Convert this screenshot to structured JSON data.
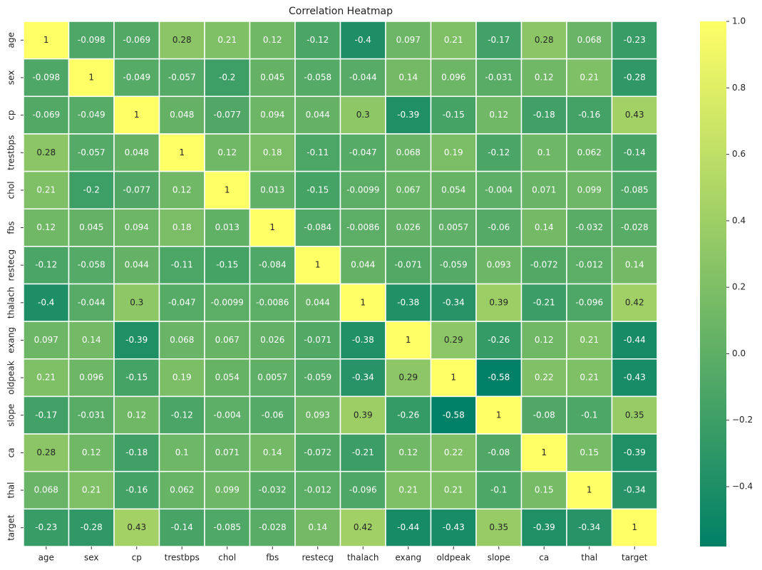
{
  "chart_data": {
    "type": "heatmap",
    "title": "Correlation Heatmap",
    "x_categories": [
      "age",
      "sex",
      "cp",
      "trestbps",
      "chol",
      "fbs",
      "restecg",
      "thalach",
      "exang",
      "oldpeak",
      "slope",
      "ca",
      "thal",
      "target"
    ],
    "y_categories": [
      "age",
      "sex",
      "cp",
      "trestbps",
      "chol",
      "fbs",
      "restecg",
      "thalach",
      "exang",
      "oldpeak",
      "slope",
      "ca",
      "thal",
      "target"
    ],
    "values": [
      [
        1,
        -0.098,
        -0.069,
        0.28,
        0.21,
        0.12,
        -0.12,
        -0.4,
        0.097,
        0.21,
        -0.17,
        0.28,
        0.068,
        -0.23
      ],
      [
        -0.098,
        1,
        -0.049,
        -0.057,
        -0.2,
        0.045,
        -0.058,
        -0.044,
        0.14,
        0.096,
        -0.031,
        0.12,
        0.21,
        -0.28
      ],
      [
        -0.069,
        -0.049,
        1,
        0.048,
        -0.077,
        0.094,
        0.044,
        0.3,
        -0.39,
        -0.15,
        0.12,
        -0.18,
        -0.16,
        0.43
      ],
      [
        0.28,
        -0.057,
        0.048,
        1,
        0.12,
        0.18,
        -0.11,
        -0.047,
        0.068,
        0.19,
        -0.12,
        0.1,
        0.062,
        -0.14
      ],
      [
        0.21,
        -0.2,
        -0.077,
        0.12,
        1,
        0.013,
        -0.15,
        -0.0099,
        0.067,
        0.054,
        -0.004,
        0.071,
        0.099,
        -0.085
      ],
      [
        0.12,
        0.045,
        0.094,
        0.18,
        0.013,
        1,
        -0.084,
        -0.0086,
        0.026,
        0.0057,
        -0.06,
        0.14,
        -0.032,
        -0.028
      ],
      [
        -0.12,
        -0.058,
        0.044,
        -0.11,
        -0.15,
        -0.084,
        1,
        0.044,
        -0.071,
        -0.059,
        0.093,
        -0.072,
        -0.012,
        0.14
      ],
      [
        -0.4,
        -0.044,
        0.3,
        -0.047,
        -0.0099,
        -0.0086,
        0.044,
        1,
        -0.38,
        -0.34,
        0.39,
        -0.21,
        -0.096,
        0.42
      ],
      [
        0.097,
        0.14,
        -0.39,
        0.068,
        0.067,
        0.026,
        -0.071,
        -0.38,
        1,
        0.29,
        -0.26,
        0.12,
        0.21,
        -0.44
      ],
      [
        0.21,
        0.096,
        -0.15,
        0.19,
        0.054,
        0.0057,
        -0.059,
        -0.34,
        0.29,
        1,
        -0.58,
        0.22,
        0.21,
        -0.43
      ],
      [
        -0.17,
        -0.031,
        0.12,
        -0.12,
        -0.004,
        -0.06,
        0.093,
        0.39,
        -0.26,
        -0.58,
        1,
        -0.08,
        -0.1,
        0.35
      ],
      [
        0.28,
        0.12,
        -0.18,
        0.1,
        0.071,
        0.14,
        -0.072,
        -0.21,
        0.12,
        0.22,
        -0.08,
        1,
        0.15,
        -0.39
      ],
      [
        0.068,
        0.21,
        -0.16,
        0.062,
        0.099,
        -0.032,
        -0.012,
        -0.096,
        0.21,
        0.21,
        -0.1,
        0.15,
        1,
        -0.34
      ],
      [
        -0.23,
        -0.28,
        0.43,
        -0.14,
        -0.085,
        -0.028,
        0.14,
        0.42,
        -0.44,
        -0.43,
        0.35,
        -0.39,
        -0.34,
        1
      ]
    ],
    "colormap": [
      "#008066",
      "#ffff66"
    ],
    "zlim": [
      -0.58,
      1
    ],
    "zticks": [
      {
        "value": -0.4,
        "label": "−0.4"
      },
      {
        "value": -0.2,
        "label": "−0.2"
      },
      {
        "value": 0,
        "label": "0.0"
      },
      0.2,
      0.4,
      0.6,
      0.8,
      {
        "value": 1,
        "label": "1.0"
      }
    ],
    "annotate": true
  }
}
